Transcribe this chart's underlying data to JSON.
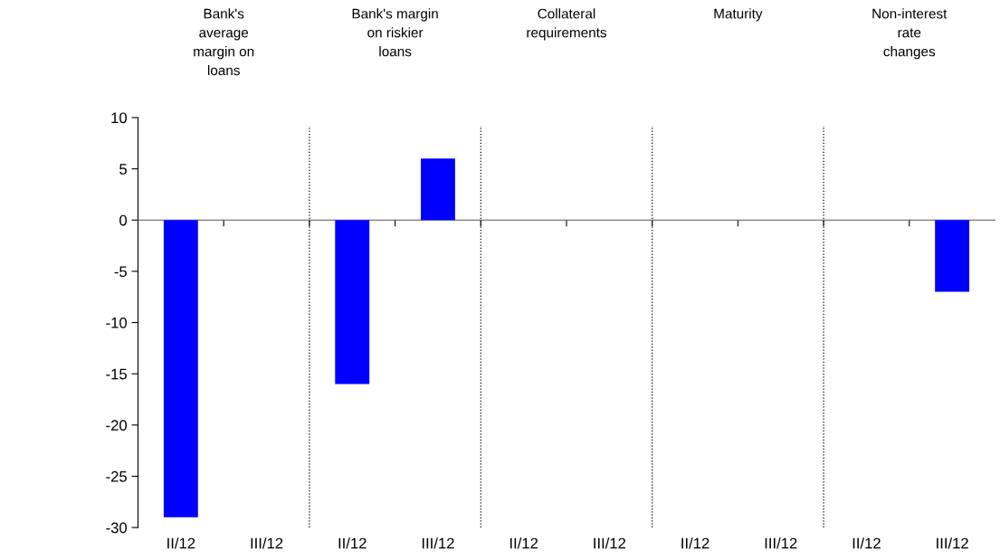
{
  "chart_data": {
    "type": "bar",
    "categories": [
      "II/12",
      "III/12",
      "II/12",
      "III/12",
      "II/12",
      "III/12",
      "II/12",
      "III/12",
      "II/12",
      "III/12"
    ],
    "values": [
      -29,
      0,
      -16,
      6,
      0,
      0,
      0,
      0,
      0,
      -7
    ],
    "color": "#0000ff",
    "ylim": [
      -30,
      10
    ],
    "yticks": [
      -30,
      -25,
      -20,
      -15,
      -10,
      -5,
      0,
      5,
      10
    ],
    "annotations": [
      "Bank's\naverage\nmargin on\nloans",
      "Bank's margin\non riskier\nloans",
      "Collateral\nrequirements",
      "Maturity",
      "Non-interest\nrate\nchanges"
    ],
    "grid": false,
    "legend": false
  }
}
